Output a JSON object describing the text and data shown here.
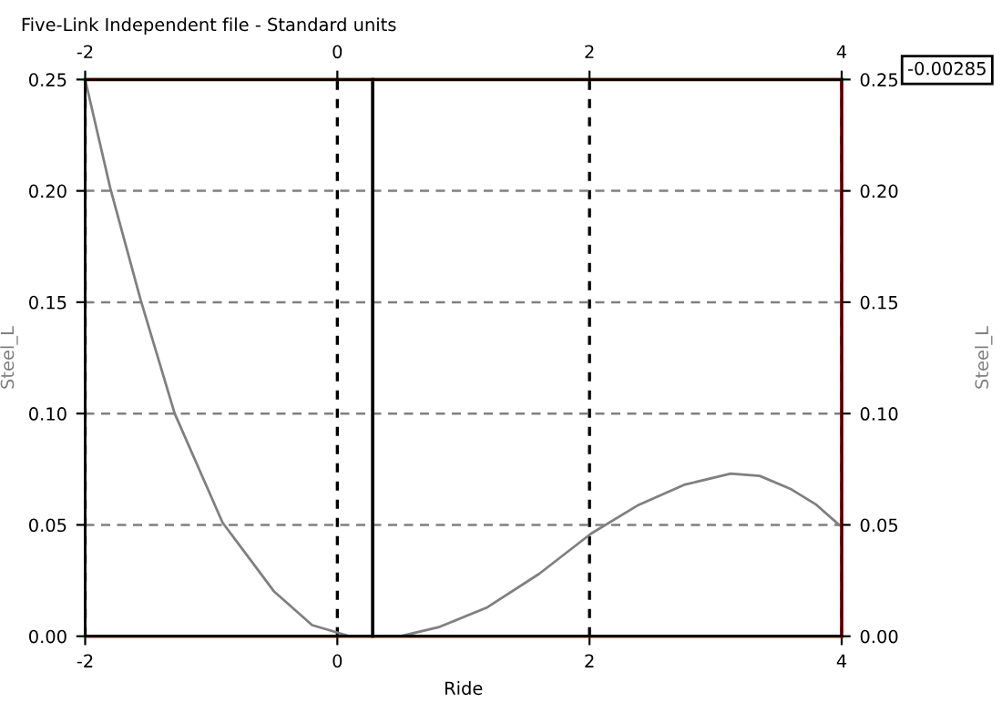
{
  "chart_data": {
    "type": "line",
    "title": "Five-Link Independent file - Standard units",
    "xlabel": "Ride",
    "ylabel": "Steel_L",
    "y2label": "Steel_L",
    "series": [
      {
        "color": "#808080",
        "x": [
          -2,
          -1.8,
          -1.56,
          -1.29,
          -0.91,
          -0.5,
          -0.2,
          0.1,
          0.5,
          0.8,
          1.19,
          1.6,
          2.01,
          2.39,
          2.75,
          3.12,
          3.35,
          3.6,
          3.8,
          3.98
        ],
        "values": [
          0.25,
          0.201,
          0.151,
          0.1,
          0.051,
          0.02,
          0.005,
          0.0,
          0.0,
          0.004,
          0.013,
          0.028,
          0.046,
          0.059,
          0.068,
          0.073,
          0.072,
          0.066,
          0.059,
          0.05
        ]
      }
    ],
    "xlim": [
      -2,
      4
    ],
    "xticks": [
      -2,
      0,
      2,
      4
    ],
    "x2lim": [
      -2,
      4
    ],
    "x2ticks": [
      -2,
      0,
      2,
      4
    ],
    "ylim": [
      0,
      0.25
    ],
    "yticks": [
      {
        "value": 0,
        "label": "0.00"
      },
      {
        "value": 0.05,
        "label": "0.05"
      },
      {
        "value": 0.1,
        "label": "0.10"
      },
      {
        "value": 0.15,
        "label": "0.15"
      },
      {
        "value": 0.2,
        "label": "0.20"
      },
      {
        "value": 0.25,
        "label": "0.25"
      }
    ],
    "y2lim": [
      0,
      0.25
    ],
    "y2ticks": [
      {
        "value": 0,
        "label": "0.00"
      },
      {
        "value": 0.05,
        "label": "0.05"
      },
      {
        "value": 0.1,
        "label": "0.10"
      },
      {
        "value": 0.15,
        "label": "0.15"
      },
      {
        "value": 0.2,
        "label": "0.20"
      },
      {
        "value": 0.25,
        "label": "0.25"
      }
    ],
    "ref_lines": [
      {
        "axis": "x",
        "value": 0.28,
        "color": "#000000",
        "line_style": "solid"
      },
      {
        "axis": "y",
        "value": 0.25,
        "color": "#ff0000",
        "line_style": "solid"
      },
      {
        "axis": "y",
        "value": 0,
        "color": "#ff0000",
        "line_style": "solid"
      },
      {
        "axis": "x",
        "value": 4,
        "color": "#ff0000",
        "line_style": "solid"
      }
    ],
    "annotations": [
      "-0.00285"
    ],
    "grid": true,
    "marker": "none",
    "line_style": "solid"
  }
}
